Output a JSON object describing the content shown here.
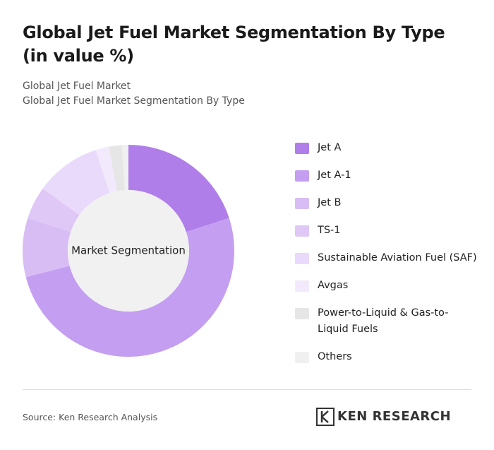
{
  "chart_data": {
    "type": "donut",
    "title": "Global Jet Fuel Market Segmentation By Type (in value %)",
    "subtitles": [
      "Global Jet Fuel Market",
      "Global Jet Fuel Market Segmentation By Type"
    ],
    "center_label": "Market Segmentation",
    "categories": [
      "Jet A",
      "Jet A-1",
      "Jet B",
      "TS-1",
      "Sustainable Aviation Fuel (SAF)",
      "Avgas",
      "Power-to-Liquid & Gas-to-Liquid Fuels",
      "Others"
    ],
    "values": [
      20,
      51,
      9,
      5,
      10,
      2,
      2,
      1
    ],
    "colors": [
      "#b07ee8",
      "#c49ef0",
      "#d8bdf5",
      "#dfc8f6",
      "#e9d9fa",
      "#f2eafc",
      "#e6e6e6",
      "#f0f0f0"
    ]
  },
  "source": "Source: Ken Research Analysis",
  "brand": "KEN RESEARCH"
}
